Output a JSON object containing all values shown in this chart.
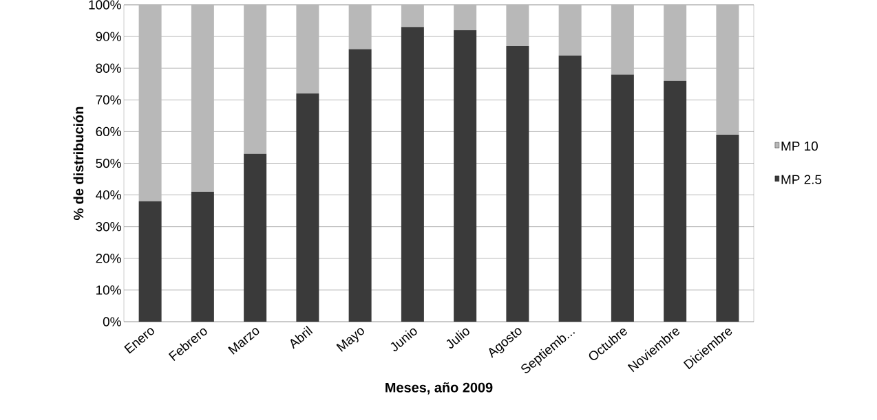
{
  "chart_data": {
    "type": "bar",
    "stacked": true,
    "xlabel": "Meses, año 2009",
    "ylabel": "% de distribución",
    "categories": [
      "Enero",
      "Febrero",
      "Marzo",
      "Abril",
      "Mayo",
      "Junio",
      "Julio",
      "Agosto",
      "Septiemb...",
      "Octubre",
      "Noviembre",
      "Diciembre"
    ],
    "series": [
      {
        "name": "MP 2.5",
        "color": "#3a3a3a",
        "values": [
          38,
          41,
          53,
          72,
          86,
          93,
          92,
          87,
          84,
          78,
          76,
          59
        ]
      },
      {
        "name": "MP 10",
        "color": "#b8b8b8",
        "values": [
          62,
          59,
          47,
          28,
          14,
          7,
          8,
          13,
          16,
          22,
          24,
          41
        ]
      }
    ],
    "ylim": [
      0,
      100
    ],
    "yticks": [
      {
        "value": 0,
        "label": "0%"
      },
      {
        "value": 10,
        "label": "10%"
      },
      {
        "value": 20,
        "label": "20%"
      },
      {
        "value": 30,
        "label": "30%"
      },
      {
        "value": 40,
        "label": "40%"
      },
      {
        "value": 50,
        "label": "50%"
      },
      {
        "value": 60,
        "label": "60%"
      },
      {
        "value": 70,
        "label": "70%"
      },
      {
        "value": 80,
        "label": "80%"
      },
      {
        "value": 90,
        "label": "90%"
      },
      {
        "value": 100,
        "label": "100%"
      }
    ],
    "grid": "y",
    "legend": "right"
  }
}
